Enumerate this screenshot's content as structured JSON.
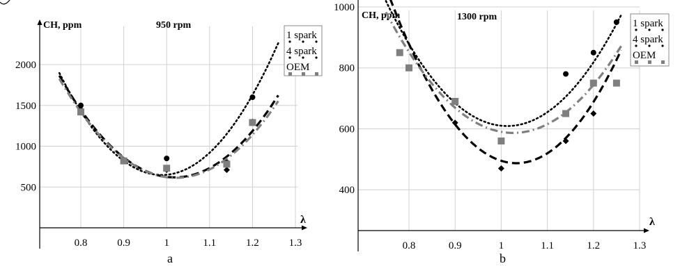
{
  "chart_data": [
    {
      "type": "scatter",
      "title": "950 rpm",
      "ylabel": "CH, ppm",
      "xlabel": "λ",
      "sublabel": "a",
      "xlim": [
        0.7,
        1.35
      ],
      "ylim": [
        0,
        2400
      ],
      "xticks": [
        0.8,
        0.9,
        1,
        1.1,
        1.2,
        1.3
      ],
      "xtick_labels": [
        "0.8",
        "0.9",
        "1",
        "1.1",
        "1.2",
        "1.3"
      ],
      "yticks": [
        500,
        1000,
        1500,
        2000
      ],
      "ytick_labels": [
        "500",
        "1000",
        "1500",
        "2000"
      ],
      "grid": true,
      "legend_position": "top-right",
      "legend": [
        "1 spark",
        "4 spark",
        "OEM"
      ],
      "series": [
        {
          "name": "1 spark",
          "marker": "circle",
          "line": "dotted",
          "color": "#000000",
          "x": [
            0.8,
            0.9,
            1.0,
            1.14,
            1.2
          ],
          "y": [
            1500,
            830,
            850,
            800,
            1600
          ],
          "fit": [
            0.75,
            1.26
          ],
          "fit_coef": [
            21950,
            -43400,
            22100
          ]
        },
        {
          "name": "4 spark",
          "marker": "diamond",
          "line": "dashed",
          "color": "#000000",
          "x": [
            0.8,
            0.9,
            1.0,
            1.14,
            1.2
          ],
          "y": [
            1450,
            820,
            710,
            710,
            1300
          ],
          "fit": [
            0.75,
            1.26
          ],
          "fit_coef": [
            17270,
            -35186,
            18540
          ]
        },
        {
          "name": "OEM",
          "marker": "square",
          "line": "dashdot",
          "color": "#7f7f7f",
          "x": [
            0.8,
            0.9,
            1.0,
            1.14,
            1.2
          ],
          "y": [
            1420,
            820,
            730,
            780,
            1290
          ],
          "fit": [
            0.75,
            1.26
          ],
          "fit_coef": [
            16500,
            -33700,
            17820
          ]
        }
      ]
    },
    {
      "type": "scatter",
      "title": "1300 rpm",
      "ylabel": "CH, ppm",
      "xlabel": "λ",
      "sublabel": "b",
      "xlim": [
        0.7,
        1.35
      ],
      "ylim": [
        200,
        1050
      ],
      "xticks": [
        0.8,
        0.9,
        1,
        1.1,
        1.2,
        1.3
      ],
      "xtick_labels": [
        "0.8",
        "0.9",
        "1",
        "1.1",
        "1.2",
        "1.3"
      ],
      "yticks": [
        400,
        600,
        800,
        1000
      ],
      "ytick_labels": [
        "400",
        "600",
        "800",
        "1000"
      ],
      "grid": true,
      "legend_position": "top-right",
      "legend": [
        "1 spark",
        "4 spark",
        "OEM"
      ],
      "series": [
        {
          "name": "1 spark",
          "marker": "circle",
          "line": "dotted",
          "color": "#000000",
          "x": [
            0.78,
            0.8,
            0.9,
            1.0,
            1.14,
            1.2,
            1.25
          ],
          "y": [
            850,
            800,
            690,
            560,
            780,
            850,
            950
          ],
          "fit": [
            0.75,
            1.26
          ],
          "fit_coef": [
            5950,
            -12050,
            6710
          ]
        },
        {
          "name": "4 spark",
          "marker": "diamond",
          "line": "dashed",
          "color": "#000000",
          "x": [
            0.78,
            0.8,
            0.9,
            1.0,
            1.14,
            1.2,
            1.25
          ],
          "y": [
            850,
            800,
            620,
            470,
            560,
            650,
            750
          ],
          "fit": [
            0.75,
            1.26
          ],
          "fit_coef": [
            7200,
            -14875,
            8170
          ]
        },
        {
          "name": "OEM",
          "marker": "square",
          "line": "dashdot",
          "color": "#7f7f7f",
          "x": [
            0.78,
            0.8,
            0.9,
            1.0,
            1.14,
            1.2,
            1.25
          ],
          "y": [
            850,
            800,
            690,
            560,
            650,
            750,
            750
          ],
          "fit": [
            0.75,
            1.26
          ],
          "fit_coef": [
            5200,
            -10670,
            6060
          ]
        }
      ]
    }
  ]
}
